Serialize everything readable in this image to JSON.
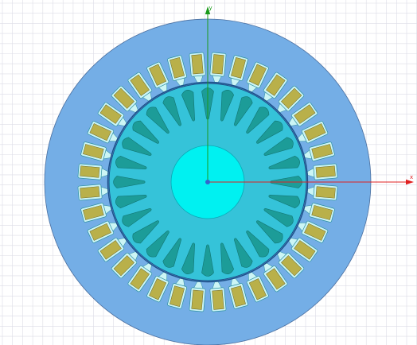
{
  "axes": {
    "x_label": "x",
    "y_label": "y",
    "x_color": "#e02020",
    "y_color": "#1a9a1a"
  },
  "colors": {
    "background": "#ffffff",
    "grid": "#dcdce6",
    "stator": "#74aee6",
    "stator_edge": "#4a6fa0",
    "stator_slot": "#ccf5f5",
    "slot_outline": "#2c8fa0",
    "winding": "#b9b04a",
    "winding_edge": "#6f6a28",
    "rotor": "#35c3d9",
    "rotor_edge": "#1b4f88",
    "rotor_bar": "#1c9c98",
    "rotor_bar_edge": "#117572",
    "shaft": "#00f1f1",
    "shaft_edge": "#0aa8b5",
    "origin_marker": "#3366cc"
  },
  "motor": {
    "stator_slots": 36,
    "rotor_bars": 28
  }
}
